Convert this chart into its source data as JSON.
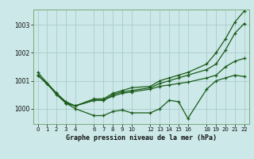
{
  "bg_color": "#cce8e8",
  "grid_color": "#aacccc",
  "line_color": "#1a5c1a",
  "title": "Graphe pression niveau de la mer (hPa)",
  "xlim": [
    -0.5,
    22.5
  ],
  "ylim": [
    999.45,
    1003.55
  ],
  "yticks": [
    1000,
    1001,
    1002,
    1003
  ],
  "xticks": [
    0,
    1,
    2,
    3,
    4,
    6,
    7,
    8,
    9,
    10,
    12,
    13,
    14,
    15,
    16,
    18,
    19,
    20,
    21,
    22
  ],
  "line1_x": [
    0,
    1,
    2,
    3,
    4,
    6,
    7,
    8,
    9,
    10,
    12,
    13,
    14,
    15,
    16,
    18,
    19,
    20,
    21,
    22
  ],
  "line1_y": [
    1001.2,
    1000.9,
    1000.55,
    1000.25,
    1000.1,
    1000.3,
    1000.3,
    1000.45,
    1000.55,
    1000.6,
    1000.7,
    1000.8,
    1000.85,
    1000.9,
    1000.95,
    1001.1,
    1001.2,
    1001.5,
    1001.7,
    1001.8
  ],
  "line2_x": [
    0,
    2,
    3,
    4,
    6,
    7,
    8,
    9,
    10,
    12,
    13,
    14,
    15,
    16,
    18,
    19,
    20,
    21,
    22
  ],
  "line2_y": [
    1001.3,
    1000.55,
    1000.2,
    1000.1,
    1000.3,
    1000.3,
    1000.5,
    1000.6,
    1000.65,
    1000.75,
    1000.9,
    1001.0,
    1001.1,
    1001.2,
    1001.4,
    1001.6,
    1002.1,
    1002.7,
    1003.05
  ],
  "line3_x": [
    0,
    2,
    3,
    4,
    6,
    7,
    8,
    9,
    10,
    12,
    13,
    14,
    15,
    16,
    18,
    19,
    20,
    21,
    22
  ],
  "line3_y": [
    1001.2,
    1000.55,
    1000.2,
    1000.1,
    1000.35,
    1000.35,
    1000.55,
    1000.65,
    1000.75,
    1000.8,
    1001.0,
    1001.1,
    1001.2,
    1001.3,
    1001.6,
    1002.0,
    1002.5,
    1003.1,
    1003.5
  ],
  "line4_x": [
    1,
    2,
    3,
    4,
    6,
    7,
    8,
    9,
    10,
    12,
    13,
    14,
    15,
    16,
    18,
    19,
    20,
    21,
    22
  ],
  "line4_y": [
    1000.9,
    1000.5,
    1000.2,
    1000.0,
    999.75,
    999.75,
    999.9,
    999.95,
    999.85,
    999.85,
    1000.0,
    1000.3,
    1000.25,
    999.65,
    1000.7,
    1001.0,
    1001.1,
    1001.2,
    1001.15
  ]
}
